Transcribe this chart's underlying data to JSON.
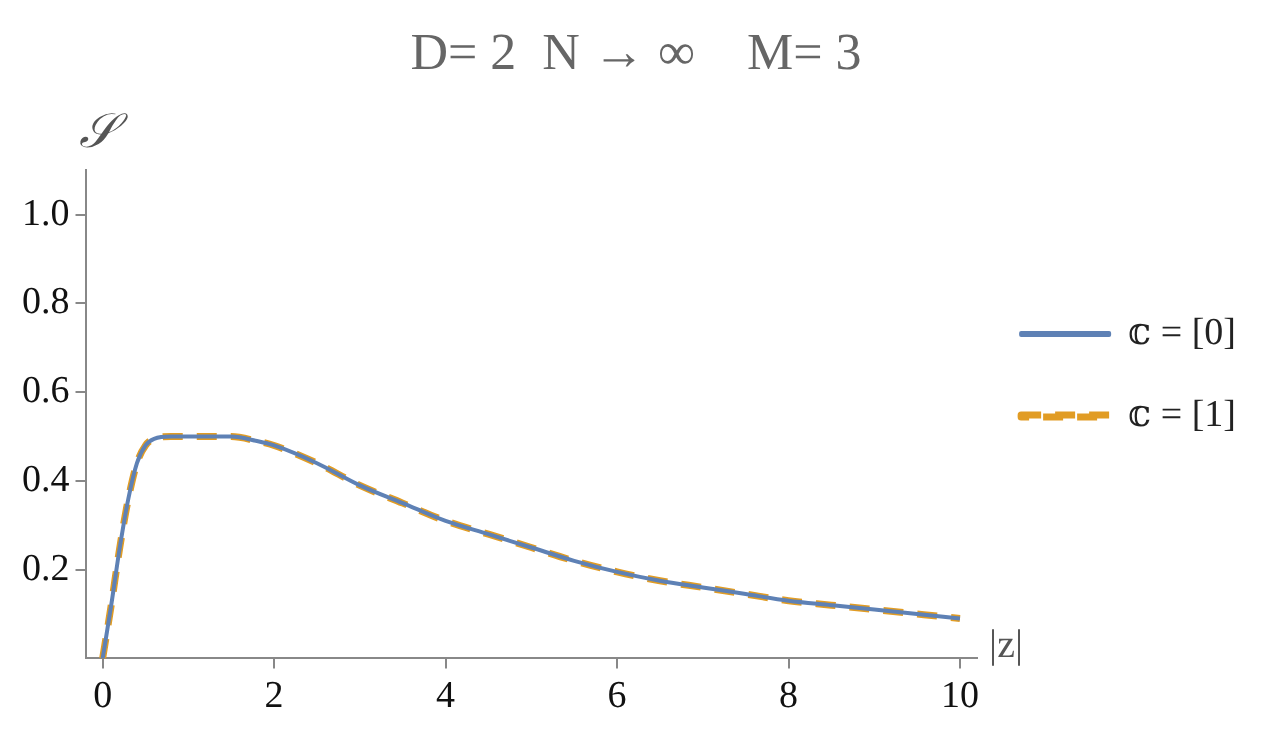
{
  "chart_data": {
    "type": "line",
    "title": "D= 2  N → ∞    M= 3",
    "xlabel": "|z|",
    "ylabel": "𝒮",
    "xlim": [
      -0.2,
      10.2
    ],
    "xticks": [
      0,
      2,
      4,
      6,
      8,
      10
    ],
    "ylim": [
      0,
      1.1
    ],
    "yticks": [
      0.2,
      0.4,
      0.6,
      0.8,
      {
        "value": 1,
        "label": "1.0"
      }
    ],
    "grid": false,
    "legend": "right",
    "marker": "none",
    "x": [
      0,
      0.1,
      0.2,
      0.3,
      0.4,
      0.5,
      0.6,
      0.8,
      1.0,
      1.5,
      1.8,
      2,
      2.5,
      3,
      3.5,
      4,
      4.5,
      5,
      5.5,
      6,
      6.5,
      7,
      7.5,
      8,
      8.5,
      9,
      9.5,
      10
    ],
    "series": [
      {
        "name": "𝕔 = [0]",
        "color": "#5e81b5",
        "line_style": "solid",
        "values": [
          0,
          0.12,
          0.25,
          0.36,
          0.44,
          0.48,
          0.495,
          0.5,
          0.5,
          0.5,
          0.49,
          0.48,
          0.44,
          0.39,
          0.35,
          0.31,
          0.28,
          0.25,
          0.22,
          0.195,
          0.175,
          0.16,
          0.145,
          0.13,
          0.12,
          0.11,
          0.1,
          0.09
        ]
      },
      {
        "name": "𝕔 = [1]",
        "color": "#e19c24",
        "line_style": "dashed",
        "values": [
          0,
          0.12,
          0.25,
          0.36,
          0.44,
          0.48,
          0.495,
          0.5,
          0.5,
          0.5,
          0.49,
          0.48,
          0.44,
          0.39,
          0.35,
          0.31,
          0.28,
          0.25,
          0.22,
          0.195,
          0.175,
          0.16,
          0.145,
          0.13,
          0.12,
          0.11,
          0.1,
          0.09
        ]
      }
    ]
  }
}
